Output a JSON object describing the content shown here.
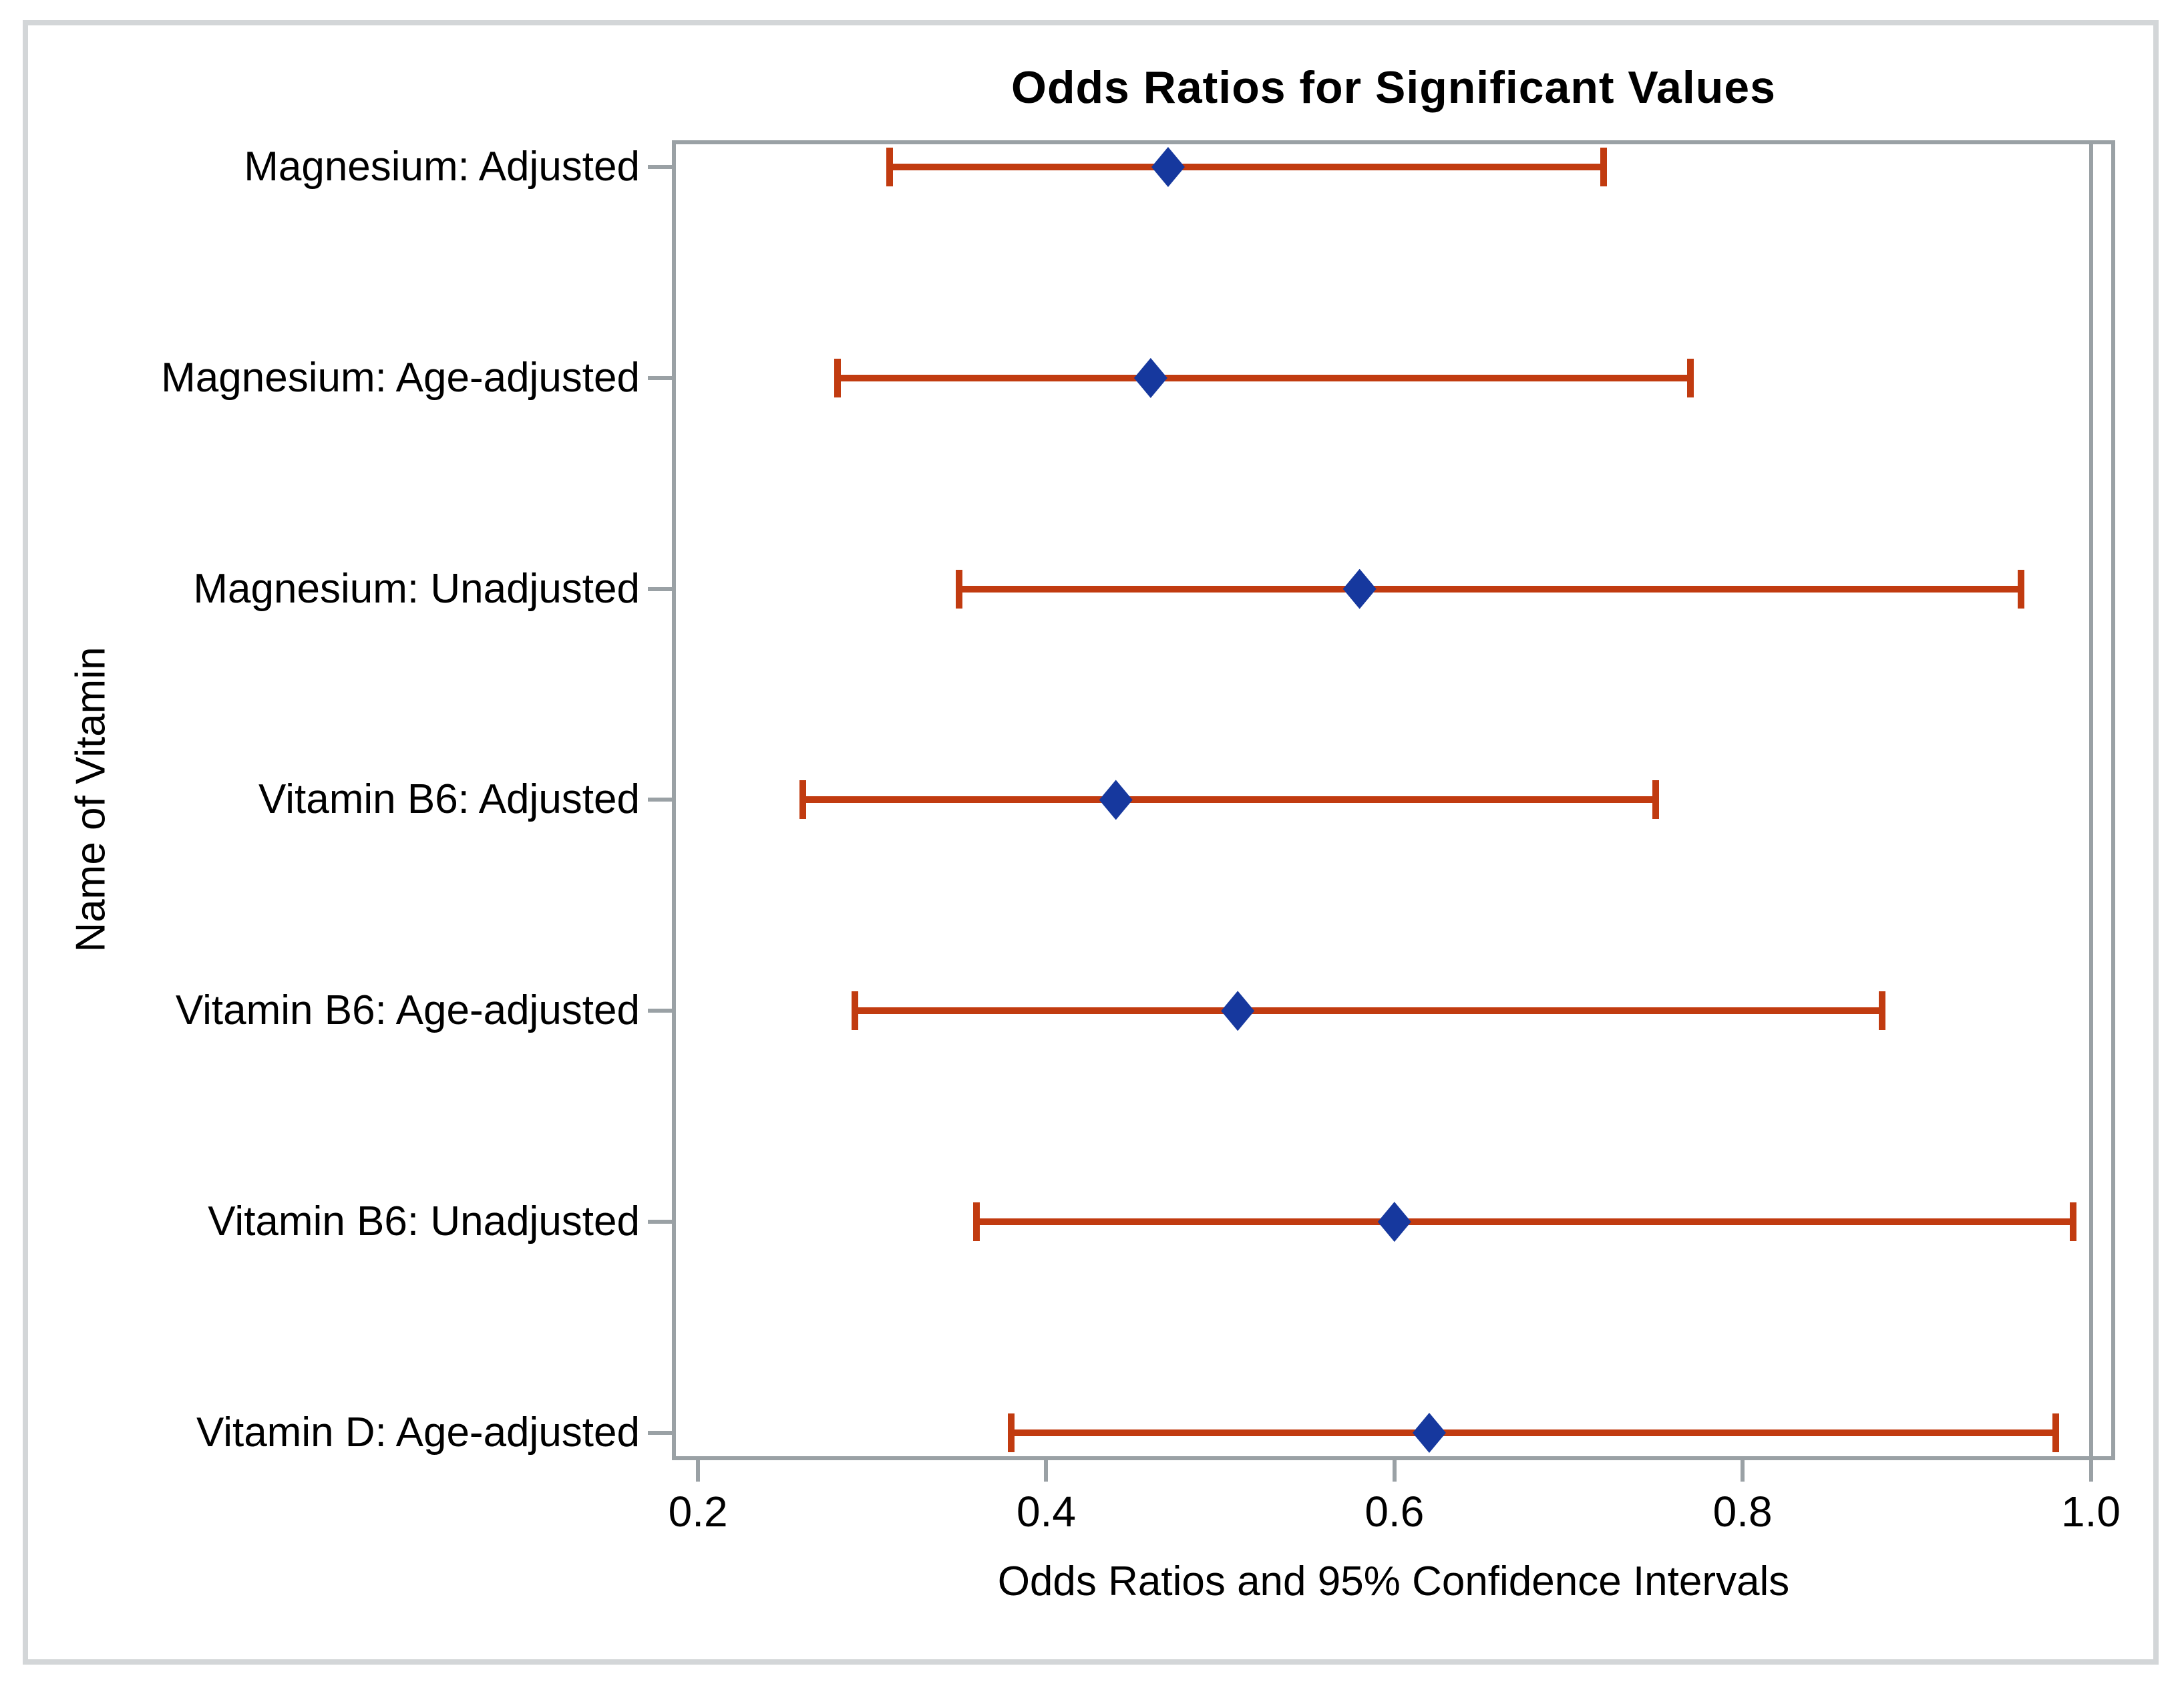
{
  "title": "Odds Ratios for Significant Values",
  "axes": {
    "x_label": "Odds Ratios and 95% Confidence Intervals",
    "y_label": "Name of Vitamin"
  },
  "colors": {
    "marker_blue": "#16389E",
    "error_bar_red": "#C13B10",
    "frame_gray": "#9AA1A5",
    "page_border_gray": "#D3D6D8",
    "text": "#000000",
    "background": "#FFFFFF"
  },
  "chart_data": {
    "type": "scatter",
    "subtype": "forest-plot-odds-ratios-with-95ci-error-bars",
    "title": "Odds Ratios for Significant Values",
    "xlabel": "Odds Ratios and 95% Confidence Intervals",
    "ylabel": "Name of Vitamin",
    "xlim": [
      0.185,
      1.014
    ],
    "grid": false,
    "legend": "none",
    "reference_line_x": 1.0,
    "x_ticks": [
      {
        "value": 0.2,
        "label": "0.2"
      },
      {
        "value": 0.4,
        "label": "0.4"
      },
      {
        "value": 0.6,
        "label": "0.6"
      },
      {
        "value": 0.8,
        "label": "0.8"
      },
      {
        "value": 1.0,
        "label": "1.0"
      }
    ],
    "categories_top_to_bottom": [
      "Magnesium: Adjusted",
      "Magnesium: Age-adjusted",
      "Magnesium: Unadjusted",
      "Vitamin B6: Adjusted",
      "Vitamin B6: Age-adjusted",
      "Vitamin B6: Unadjusted",
      "Vitamin D: Age-adjusted"
    ],
    "points": [
      {
        "label": "Magnesium: Adjusted",
        "odds_ratio": 0.47,
        "ci_low": 0.31,
        "ci_high": 0.72
      },
      {
        "label": "Magnesium: Age-adjusted",
        "odds_ratio": 0.46,
        "ci_low": 0.28,
        "ci_high": 0.77
      },
      {
        "label": "Magnesium: Unadjusted",
        "odds_ratio": 0.58,
        "ci_low": 0.35,
        "ci_high": 0.96
      },
      {
        "label": "Vitamin B6: Adjusted",
        "odds_ratio": 0.44,
        "ci_low": 0.26,
        "ci_high": 0.75
      },
      {
        "label": "Vitamin B6: Age-adjusted",
        "odds_ratio": 0.51,
        "ci_low": 0.29,
        "ci_high": 0.88
      },
      {
        "label": "Vitamin B6: Unadjusted",
        "odds_ratio": 0.6,
        "ci_low": 0.36,
        "ci_high": 0.99
      },
      {
        "label": "Vitamin D: Age-adjusted",
        "odds_ratio": 0.62,
        "ci_low": 0.38,
        "ci_high": 0.98
      }
    ]
  }
}
